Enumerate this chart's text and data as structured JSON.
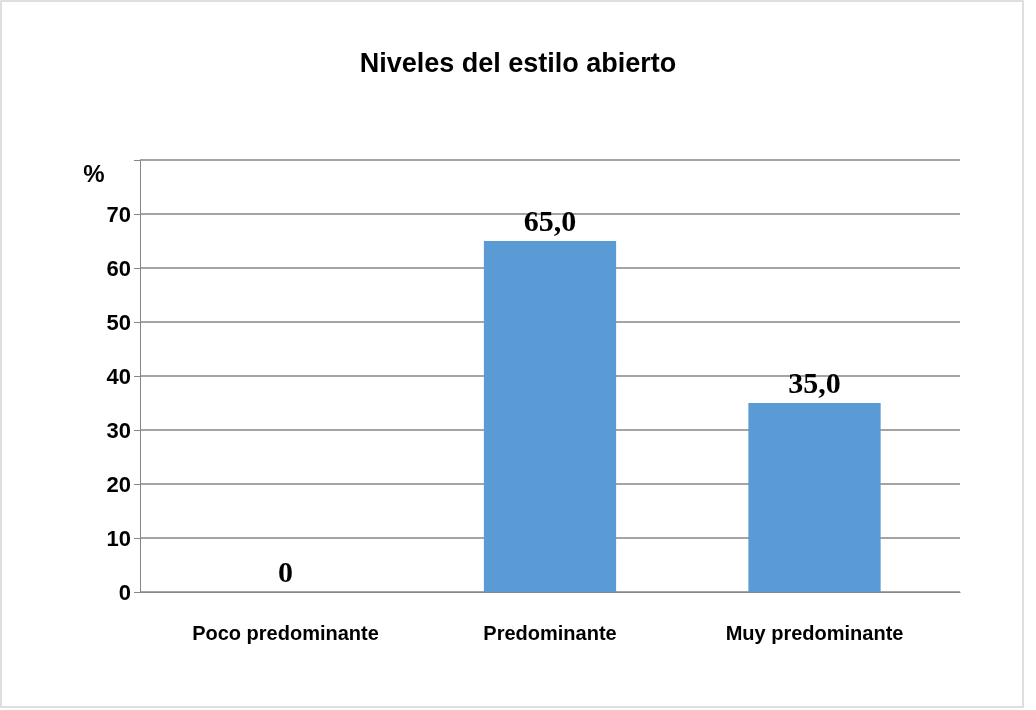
{
  "chart_data": {
    "type": "bar",
    "title": "Niveles del estilo abierto",
    "ylabel": "%",
    "categories": [
      "Poco predominante",
      "Predominante",
      "Muy predominante"
    ],
    "values": [
      0,
      65,
      35
    ],
    "value_labels": [
      "0",
      "65,0",
      "35,0"
    ],
    "color": "#5b9bd5",
    "ylim": [
      0,
      80
    ],
    "yticks": [
      0,
      10,
      20,
      30,
      40,
      50,
      60,
      70,
      {
        "value": 80,
        "label": null
      }
    ],
    "grid": "y"
  }
}
